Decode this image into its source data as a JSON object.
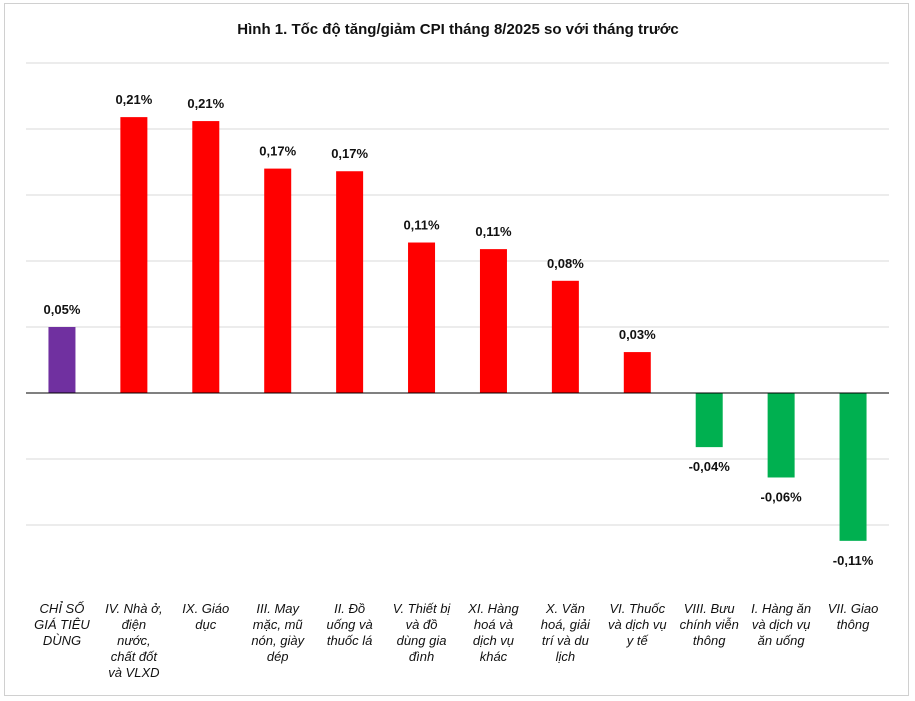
{
  "chart_data": {
    "type": "bar",
    "title": "Hình 1. Tốc độ tăng/giảm CPI tháng 8/2025 so với tháng trước",
    "xlabel": "",
    "ylabel": "",
    "ylim": [
      -0.15,
      0.25
    ],
    "grid": true,
    "unit_suffix": "%",
    "categories": [
      "CHỈ SỐ GIÁ TIÊU DÙNG",
      "IV. Nhà ở, điện nước, chất đốt và VLXD",
      "IX. Giáo dục",
      "III. May mặc, mũ nón, giày dép",
      "II. Đồ uống và thuốc lá",
      "V. Thiết bị và đồ dùng gia đình",
      "XI. Hàng hoá và dịch vụ khác",
      "X. Văn hoá, giải trí và du lịch",
      "VI. Thuốc và dịch vụ y tế",
      "VIII. Bưu chính viễn thông",
      "I. Hàng ăn và dịch vụ ăn uống",
      "VII. Giao thông"
    ],
    "category_lines": [
      [
        "CHỈ SỐ",
        "GIÁ TIÊU",
        "DÙNG"
      ],
      [
        "IV. Nhà ở,",
        "điện",
        "nước,",
        "chất đốt",
        "và VLXD"
      ],
      [
        "IX. Giáo",
        "dục"
      ],
      [
        "III. May",
        "mặc, mũ",
        "nón, giày",
        "dép"
      ],
      [
        "II. Đồ",
        "uống và",
        "thuốc lá"
      ],
      [
        "V. Thiết bị",
        "và đồ",
        "dùng gia",
        "đình"
      ],
      [
        "XI. Hàng",
        "hoá và",
        "dịch vụ",
        "khác"
      ],
      [
        "X. Văn",
        "hoá, giải",
        "trí và du",
        "lịch"
      ],
      [
        "VI. Thuốc",
        "và dịch vụ",
        "y tế"
      ],
      [
        "VIII. Bưu",
        "chính viễn",
        "thông"
      ],
      [
        "I. Hàng ăn",
        "và dịch vụ",
        "ăn uống"
      ],
      [
        "VII. Giao",
        "thông"
      ]
    ],
    "values": [
      0.05,
      0.21,
      0.21,
      0.17,
      0.17,
      0.11,
      0.11,
      0.08,
      0.03,
      -0.04,
      -0.06,
      -0.11
    ],
    "bar_heights_estimated": [
      0.05,
      0.209,
      0.206,
      0.17,
      0.168,
      0.114,
      0.109,
      0.085,
      0.031,
      -0.041,
      -0.064,
      -0.112
    ],
    "value_labels": [
      "0,05%",
      "0,21%",
      "0,21%",
      "0,17%",
      "0,17%",
      "0,11%",
      "0,11%",
      "0,08%",
      "0,03%",
      "-0,04%",
      "-0,06%",
      "-0,11%"
    ],
    "colors": {
      "total": "#7030a0",
      "positive": "#ff0000",
      "negative": "#00b050",
      "grid": "#d9d9d9",
      "axis": "#000000"
    }
  }
}
